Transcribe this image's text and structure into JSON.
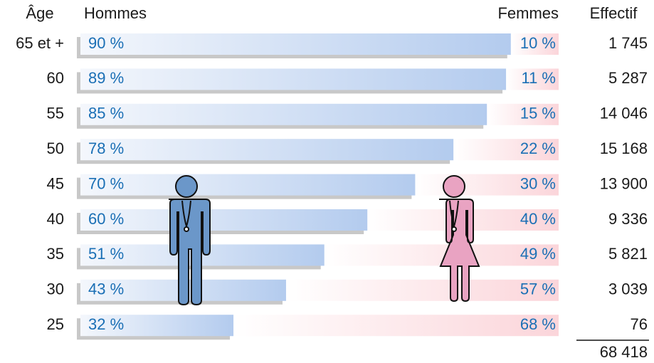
{
  "chart_data": {
    "type": "bar",
    "stacked": true,
    "orientation": "horizontal",
    "age_label": "Âge",
    "effectif_label": "Effectif",
    "categories": [
      "65 et +",
      "60",
      "55",
      "50",
      "45",
      "40",
      "35",
      "30",
      "25"
    ],
    "xlim": [
      0,
      100
    ],
    "series": [
      {
        "name": "Hommes",
        "color": "#b3cbee",
        "values": [
          90,
          89,
          85,
          78,
          70,
          60,
          51,
          43,
          32
        ],
        "value_labels": [
          "90 %",
          "89 %",
          "85 %",
          "78 %",
          "70 %",
          "60 %",
          "51 %",
          "43 %",
          "32 %"
        ]
      },
      {
        "name": "Femmes",
        "color": "#fbd5da",
        "values": [
          10,
          11,
          15,
          22,
          30,
          40,
          49,
          57,
          68
        ],
        "value_labels": [
          "10 %",
          "11 %",
          "15 %",
          "22 %",
          "30 %",
          "40 %",
          "49 %",
          "57 %",
          "68 %"
        ]
      }
    ],
    "effectif": {
      "values": [
        1745,
        5287,
        14046,
        15168,
        13900,
        9336,
        5821,
        3039,
        76
      ],
      "value_labels": [
        "1 745",
        "5 287",
        "14 046",
        "15 168",
        "13 900",
        "9 336",
        "5 821",
        "3 039",
        "76"
      ],
      "total": 68418,
      "total_label": "68 418"
    }
  }
}
